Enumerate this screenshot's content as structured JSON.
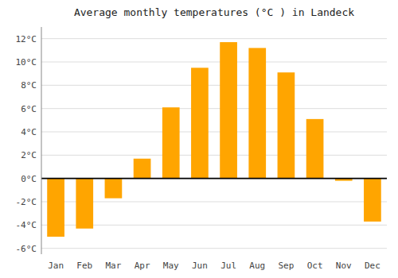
{
  "chart_data": {
    "type": "bar",
    "title": "Average monthly temperatures (°C ) in Landeck",
    "categories": [
      "Jan",
      "Feb",
      "Mar",
      "Apr",
      "May",
      "Jun",
      "Jul",
      "Aug",
      "Sep",
      "Oct",
      "Nov",
      "Dec"
    ],
    "values": [
      -5.0,
      -4.3,
      -1.7,
      1.7,
      6.1,
      9.5,
      11.7,
      11.2,
      9.1,
      5.1,
      -0.2,
      -3.7
    ],
    "color": "#FFA500",
    "ylim": [
      -6.5,
      13
    ],
    "yticks": [
      {
        "value": -6,
        "label": "-6°C"
      },
      {
        "value": -4,
        "label": "-4°C"
      },
      {
        "value": -2,
        "label": "-2°C"
      },
      {
        "value": 0,
        "label": "0°C"
      },
      {
        "value": 2,
        "label": "2°C"
      },
      {
        "value": 4,
        "label": "4°C"
      },
      {
        "value": 6,
        "label": "6°C"
      },
      {
        "value": 8,
        "label": "8°C"
      },
      {
        "value": 10,
        "label": "10°C"
      },
      {
        "value": 12,
        "label": "12°C"
      }
    ],
    "grid": true
  }
}
